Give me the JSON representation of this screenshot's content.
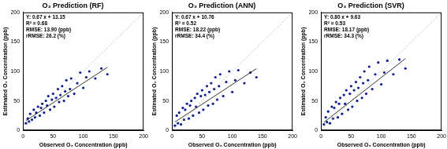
{
  "chart_data": [
    {
      "type": "scatter",
      "title": "O₃ Prediction (RF)",
      "x_label": "Observed O₃ Concentration (ppb)",
      "y_label": "Estimated O₃ Concentration (ppb)",
      "xlim": [
        0,
        200
      ],
      "ylim": [
        0,
        200
      ],
      "xticks": [
        0,
        50,
        100,
        150,
        200
      ],
      "yticks": [
        0,
        50,
        100,
        150,
        200
      ],
      "grid": false,
      "color": "#0d1f8f",
      "x": [
        5,
        8,
        10,
        12,
        15,
        18,
        20,
        22,
        25,
        28,
        30,
        32,
        35,
        38,
        40,
        42,
        45,
        48,
        50,
        52,
        55,
        58,
        60,
        62,
        65,
        68,
        70,
        72,
        75,
        78,
        80,
        85,
        90,
        95,
        100,
        105,
        110,
        120,
        130,
        140
      ],
      "values": [
        12,
        20,
        15,
        28,
        18,
        35,
        22,
        30,
        40,
        25,
        38,
        45,
        30,
        50,
        42,
        58,
        35,
        52,
        62,
        40,
        55,
        70,
        48,
        60,
        75,
        50,
        66,
        85,
        58,
        70,
        88,
        62,
        80,
        98,
        72,
        90,
        100,
        88,
        105,
        95
      ],
      "fit": {
        "slope": 0.67,
        "intercept": 13.15
      },
      "annotations": [
        "Y: 0.67 x + 13.15",
        "R² = 0.68",
        "RMSE: 13.90 (ppb)",
        "rRMSE: 26.2 (%)"
      ]
    },
    {
      "type": "scatter",
      "title": "O₃ Prediction (ANN)",
      "x_label": "Observed O₃ Concentration (ppb)",
      "y_label": "Estimated O₃ Concentration (ppb)",
      "xlim": [
        0,
        200
      ],
      "ylim": [
        0,
        200
      ],
      "xticks": [
        0,
        50,
        100,
        150,
        200
      ],
      "yticks": [
        0,
        50,
        100,
        150,
        200
      ],
      "grid": false,
      "color": "#0d1f8f",
      "x": [
        5,
        8,
        10,
        12,
        15,
        18,
        20,
        22,
        25,
        28,
        30,
        32,
        35,
        38,
        40,
        42,
        45,
        48,
        50,
        52,
        55,
        58,
        60,
        62,
        65,
        68,
        70,
        72,
        75,
        78,
        80,
        85,
        90,
        95,
        100,
        105,
        110,
        120,
        130,
        140
      ],
      "values": [
        8,
        25,
        12,
        30,
        10,
        38,
        18,
        35,
        45,
        20,
        42,
        50,
        25,
        55,
        40,
        62,
        30,
        58,
        68,
        35,
        60,
        75,
        42,
        65,
        80,
        45,
        70,
        90,
        52,
        75,
        95,
        58,
        82,
        100,
        65,
        85,
        102,
        80,
        98,
        90
      ],
      "fit": {
        "slope": 0.67,
        "intercept": 10.76
      },
      "annotations": [
        "Y: 0.67 x + 10.76",
        "R² = 0.52",
        "RMSE: 18.22 (ppb)",
        "rRMSE: 34.4 (%)"
      ]
    },
    {
      "type": "scatter",
      "title": "O₃ Prediction (SVR)",
      "x_label": "Observed O₃ Concentration (ppb)",
      "y_label": "Estimated O₃ Concentration (ppb)",
      "xlim": [
        0,
        200
      ],
      "ylim": [
        0,
        200
      ],
      "xticks": [
        0,
        50,
        100,
        150,
        200
      ],
      "yticks": [
        0,
        50,
        100,
        150,
        200
      ],
      "grid": false,
      "color": "#0d1f8f",
      "x": [
        5,
        8,
        10,
        12,
        15,
        18,
        20,
        22,
        25,
        28,
        30,
        32,
        35,
        38,
        40,
        42,
        45,
        48,
        50,
        52,
        55,
        58,
        60,
        62,
        65,
        68,
        70,
        72,
        75,
        78,
        80,
        85,
        90,
        95,
        100,
        105,
        110,
        120,
        130,
        140
      ],
      "values": [
        10,
        22,
        14,
        32,
        12,
        40,
        20,
        38,
        48,
        22,
        45,
        55,
        28,
        60,
        45,
        68,
        35,
        62,
        75,
        40,
        68,
        82,
        50,
        72,
        90,
        55,
        80,
        100,
        62,
        85,
        108,
        70,
        95,
        115,
        78,
        98,
        118,
        95,
        120,
        105
      ],
      "fit": {
        "slope": 0.8,
        "intercept": 9.63
      },
      "annotations": [
        "Y: 0.80 x + 9.63",
        "R² = 0.53",
        "RMSE: 18.17 (ppb)",
        "rRMSE: 34.3 (%)"
      ]
    }
  ]
}
